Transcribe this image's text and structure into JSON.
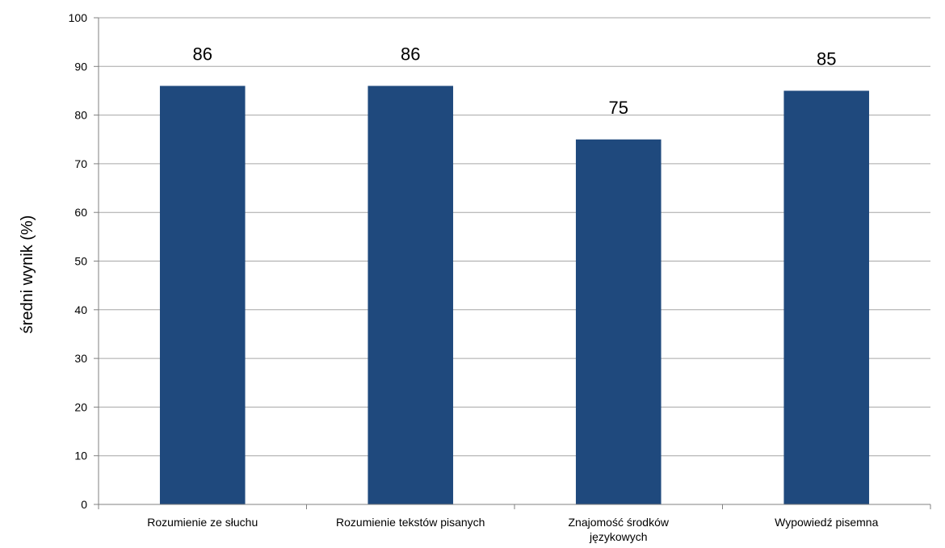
{
  "chart_data": {
    "type": "bar",
    "categories": [
      [
        "Rozumienie ze słuchu"
      ],
      [
        "Rozumienie tekstów pisanych"
      ],
      [
        "Znajomość środków",
        "językowych"
      ],
      [
        "Wypowiedź pisemna"
      ]
    ],
    "values": [
      86,
      86,
      75,
      85
    ],
    "data_labels": [
      "86",
      "86",
      "75",
      "85"
    ],
    "ylabel": "średni wynik (%)",
    "ylim": [
      0,
      100
    ],
    "yticks": [
      0,
      10,
      20,
      30,
      40,
      50,
      60,
      70,
      80,
      90,
      100
    ],
    "grid": true,
    "bar_color": "#1f497d",
    "grid_color": "#a6a6a6"
  }
}
